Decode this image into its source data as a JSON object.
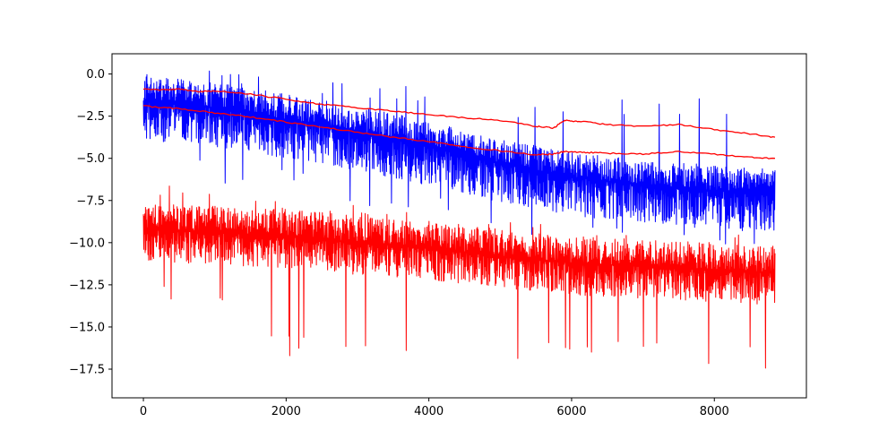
{
  "chart_data": {
    "type": "line",
    "title": "",
    "xlabel": "",
    "ylabel": "",
    "xlim": [
      -440,
      9290
    ],
    "ylim": [
      -19.2,
      1.2
    ],
    "xticks": [
      {
        "value": 0,
        "label": "0"
      },
      {
        "value": 2000,
        "label": "2000"
      },
      {
        "value": 4000,
        "label": "4000"
      },
      {
        "value": 6000,
        "label": "6000"
      },
      {
        "value": 8000,
        "label": "8000"
      }
    ],
    "yticks": [
      {
        "value": 0.0,
        "label": "0.0"
      },
      {
        "value": -2.5,
        "label": "−2.5"
      },
      {
        "value": -5.0,
        "label": "−5.0"
      },
      {
        "value": -7.5,
        "label": "−7.5"
      },
      {
        "value": -10.0,
        "label": "−10.0"
      },
      {
        "value": -12.5,
        "label": "−12.5"
      },
      {
        "value": -15.0,
        "label": "−15.0"
      },
      {
        "value": -17.5,
        "label": "−17.5"
      }
    ],
    "grid": false,
    "legend": "none",
    "x_range": [
      0,
      8850
    ],
    "series": [
      {
        "color": "#0000ff",
        "style": "noisy-band",
        "trend": {
          "x": [
            0,
            1000,
            2000,
            3000,
            4000,
            5000,
            6000,
            7000,
            8000,
            8850
          ],
          "y": [
            -1.6,
            -2.0,
            -2.7,
            -3.4,
            -4.3,
            -5.3,
            -6.1,
            -6.6,
            -6.9,
            -7.1
          ]
        },
        "band_up": 1.5,
        "band_down": 2.3,
        "peak_max": [
          0.3,
          0.2,
          -0.2,
          -0.6,
          -0.7,
          -1.5,
          -1.0,
          -1.1,
          -1.0,
          -4.0
        ],
        "dip_min": [
          -4.5,
          -6.9,
          -6.5,
          -8.0,
          -8.2,
          -9.5,
          -10.0,
          -9.8,
          -10.3,
          -10.7
        ]
      },
      {
        "color": "#ff0000",
        "style": "noisy-band",
        "trend": {
          "x": [
            0,
            1000,
            2000,
            3000,
            4000,
            5000,
            6000,
            7000,
            8000,
            8850
          ],
          "y": [
            -9.2,
            -9.4,
            -9.6,
            -10.0,
            -10.3,
            -10.8,
            -11.2,
            -11.4,
            -11.6,
            -11.8
          ]
        },
        "band_up": 1.6,
        "band_down": 1.9,
        "peak_max": [
          -6.4,
          -6.6,
          -7.6,
          -7.7,
          -8.1,
          -8.3,
          -9.2,
          -9.0,
          -9.1,
          -9.6
        ],
        "dip_min": [
          -13.0,
          -14.0,
          -16.9,
          -18.0,
          -17.5,
          -17.8,
          -17.0,
          -17.2,
          -18.2,
          -18.0
        ]
      },
      {
        "color": "#ff0000",
        "style": "line",
        "x": [
          0,
          250,
          500,
          750,
          1000,
          1500,
          2000,
          2500,
          3000,
          3500,
          4000,
          4500,
          5000,
          5500,
          5750,
          5900,
          6100,
          6500,
          7000,
          7500,
          8000,
          8500,
          8850
        ],
        "y": [
          -0.9,
          -0.95,
          -0.9,
          -1.05,
          -1.0,
          -1.2,
          -1.5,
          -1.8,
          -2.0,
          -2.2,
          -2.4,
          -2.6,
          -2.75,
          -3.1,
          -3.2,
          -2.75,
          -2.8,
          -3.0,
          -3.1,
          -3.0,
          -3.3,
          -3.55,
          -3.75
        ]
      },
      {
        "color": "#ff0000",
        "style": "line",
        "x": [
          0,
          500,
          1000,
          1500,
          2000,
          2500,
          3000,
          3500,
          4000,
          4500,
          5000,
          5500,
          5750,
          5900,
          6200,
          6500,
          7000,
          7500,
          8000,
          8500,
          8850
        ],
        "y": [
          -1.9,
          -2.05,
          -2.3,
          -2.55,
          -2.85,
          -3.15,
          -3.45,
          -3.75,
          -4.0,
          -4.3,
          -4.55,
          -4.8,
          -4.75,
          -4.6,
          -4.65,
          -4.7,
          -4.75,
          -4.6,
          -4.75,
          -4.95,
          -5.0
        ]
      }
    ]
  }
}
